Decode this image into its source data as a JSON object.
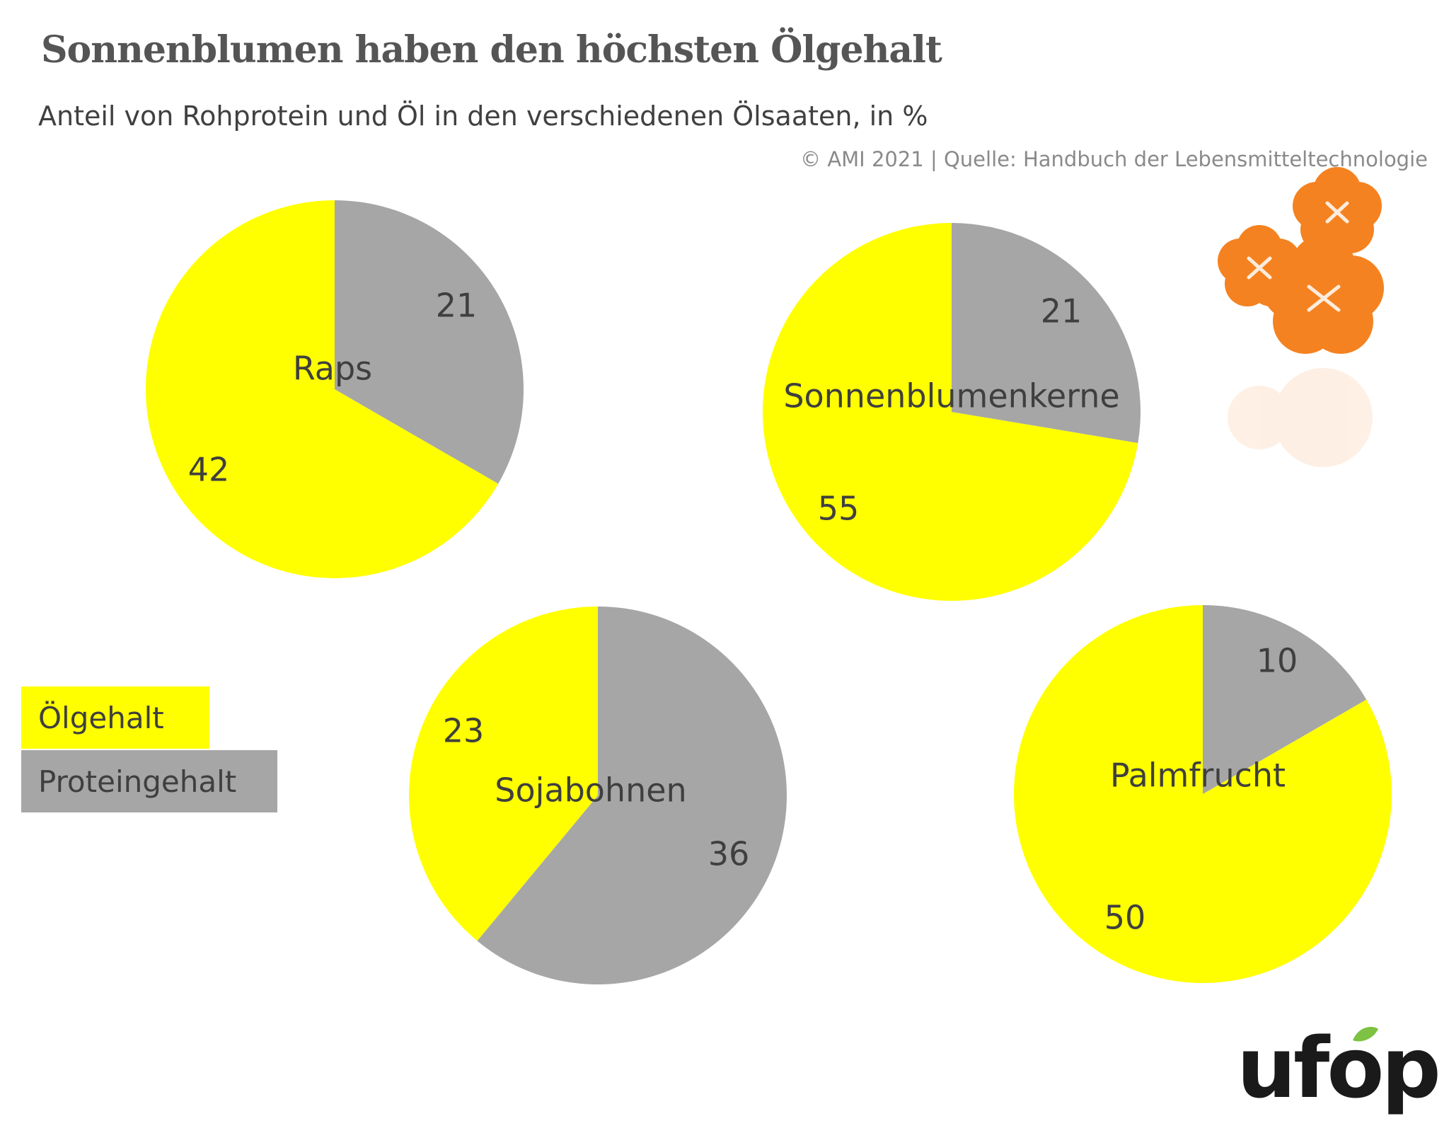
{
  "chart_data": {
    "type": "pie",
    "title": "Sonnenblumen haben den höchsten Ölgehalt",
    "subtitle": "Anteil von Rohprotein und Öl in den verschiedenen Ölsaaten, in %",
    "source": "© AMI 2021 | Quelle: Handbuch der Lebensmitteltechnologie",
    "legend": [
      {
        "label": "Ölgehalt",
        "color": "#FFFF00"
      },
      {
        "label": "Proteingehalt",
        "color": "#A6A6A6"
      }
    ],
    "pies": [
      {
        "name": "Raps",
        "protein": 21,
        "oil": 42
      },
      {
        "name": "Sonnenblumenkerne",
        "protein": 21,
        "oil": 55
      },
      {
        "name": "Sojabohnen",
        "protein": 36,
        "oil": 23
      },
      {
        "name": "Palmfrucht",
        "protein": 10,
        "oil": 50
      }
    ]
  },
  "logo": {
    "text": "ufop",
    "icon": "flower-cluster-icon"
  },
  "colors": {
    "oil": "#FFFF00",
    "protein": "#A6A6A6",
    "text": "#3f3f3f"
  }
}
